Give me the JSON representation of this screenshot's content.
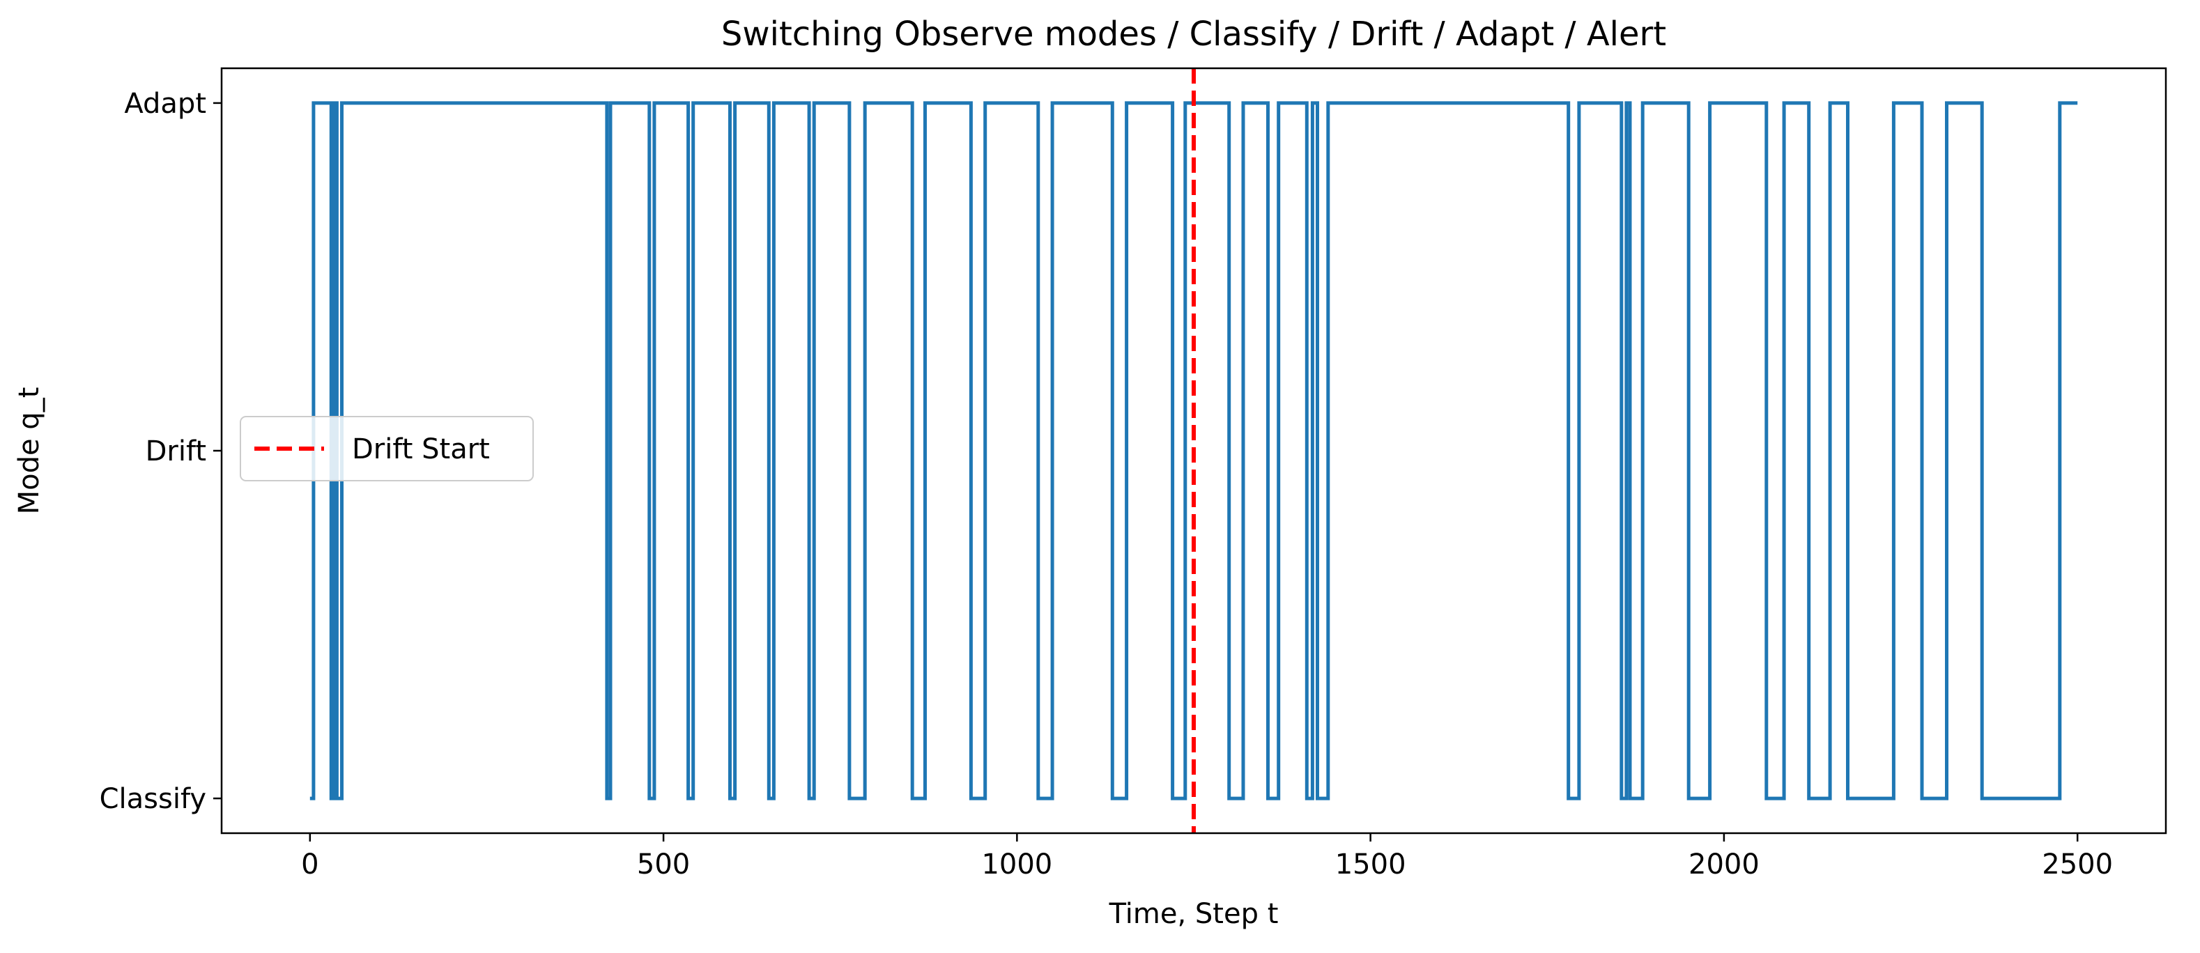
{
  "chart_data": {
    "type": "line",
    "title": "Switching Observe modes / Classify / Drift / Adapt / Alert",
    "xlabel": "Time, Step t",
    "ylabel": "Mode q_t",
    "xlim": [
      -125,
      2625
    ],
    "x_ticks": [
      0,
      500,
      1000,
      1500,
      2000,
      2500
    ],
    "ylim": [
      -0.1,
      2.1
    ],
    "y_categories": [
      "Classify",
      "Drift",
      "Adapt"
    ],
    "grid": false,
    "legend_position": "center-left",
    "colors": {
      "series": "#1f77b4",
      "marker": "#ff0000"
    },
    "series": [
      {
        "step": "post",
        "x": [
          0,
          5,
          5,
          30,
          30,
          35,
          35,
          38,
          38,
          45,
          45,
          50,
          50,
          420,
          420,
          425,
          425,
          430,
          430,
          480,
          480,
          487,
          487,
          535,
          535,
          542,
          542,
          594,
          594,
          601,
          601,
          649,
          649,
          656,
          656,
          706,
          706,
          713,
          713,
          763,
          763,
          785,
          785,
          852,
          852,
          870,
          870,
          935,
          935,
          955,
          955,
          1030,
          1030,
          1050,
          1050,
          1135,
          1135,
          1155,
          1155,
          1220,
          1220,
          1238,
          1238,
          1300,
          1300,
          1320,
          1320,
          1355,
          1355,
          1370,
          1370,
          1410,
          1410,
          1418,
          1418,
          1425,
          1425,
          1440,
          1440,
          1448,
          1448,
          1780,
          1780,
          1795,
          1795,
          1855,
          1855,
          1862,
          1862,
          1867,
          1867,
          1885,
          1885,
          1950,
          1950,
          1980,
          1980,
          2060,
          2060,
          2085,
          2085,
          2120,
          2120,
          2150,
          2150,
          2175,
          2175,
          2240,
          2240,
          2280,
          2280,
          2315,
          2315,
          2365,
          2365,
          2475,
          2475,
          2500
        ],
        "y": [
          0,
          0,
          2,
          2,
          0,
          0,
          2,
          2,
          0,
          0,
          2,
          2,
          2,
          2,
          0,
          0,
          2,
          2,
          2,
          2,
          0,
          0,
          2,
          2,
          0,
          0,
          2,
          2,
          0,
          0,
          2,
          2,
          0,
          0,
          2,
          2,
          0,
          0,
          2,
          2,
          0,
          0,
          2,
          2,
          0,
          0,
          2,
          2,
          0,
          0,
          2,
          2,
          0,
          0,
          2,
          2,
          0,
          0,
          2,
          2,
          0,
          0,
          2,
          2,
          0,
          0,
          2,
          2,
          0,
          0,
          2,
          2,
          0,
          0,
          2,
          2,
          0,
          0,
          2,
          2,
          2,
          2,
          0,
          0,
          2,
          2,
          0,
          0,
          2,
          2,
          0,
          0,
          2,
          2,
          0,
          0,
          2,
          2,
          0,
          0,
          2,
          2,
          0,
          0,
          2,
          2,
          0,
          0,
          2,
          2,
          0,
          0,
          2,
          2,
          0,
          0,
          2,
          2
        ]
      }
    ],
    "annotations": [
      {
        "type": "vline",
        "x": 1250,
        "label": "Drift Start",
        "style": "dashed"
      }
    ]
  }
}
